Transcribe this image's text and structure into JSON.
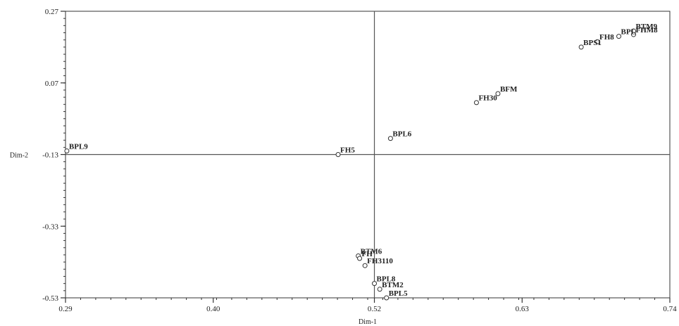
{
  "chart_data": {
    "type": "scatter",
    "title": "",
    "xlabel": "Dim-1",
    "ylabel": "Dim-2",
    "xlim": [
      0.29,
      0.74
    ],
    "ylim": [
      -0.53,
      0.27
    ],
    "xticks": [
      "0.29",
      "0.40",
      "0.52",
      "0.63",
      "0.74"
    ],
    "yticks": [
      "0.27",
      "0.07",
      "-0.13",
      "-0.33",
      "-0.53"
    ],
    "reference_lines": {
      "x": 0.52,
      "y": -0.13
    },
    "grid": false,
    "legend": "none",
    "points": [
      {
        "label": "BTM9",
        "x": 0.713,
        "y": 0.215
      },
      {
        "label": "FHM8",
        "x": 0.713,
        "y": 0.205
      },
      {
        "label": "BPL",
        "x": 0.702,
        "y": 0.2
      },
      {
        "label": "FH8",
        "x": 0.686,
        "y": 0.185
      },
      {
        "label": "BPS1",
        "x": 0.674,
        "y": 0.17
      },
      {
        "label": "BFM",
        "x": 0.612,
        "y": 0.04
      },
      {
        "label": "FH30",
        "x": 0.596,
        "y": 0.015
      },
      {
        "label": "BPL6",
        "x": 0.532,
        "y": -0.085
      },
      {
        "label": "BPL9",
        "x": 0.291,
        "y": -0.12
      },
      {
        "label": "FH5",
        "x": 0.493,
        "y": -0.13
      },
      {
        "label": "BTM6",
        "x": 0.508,
        "y": -0.413
      },
      {
        "label": "FH",
        "x": 0.509,
        "y": -0.42
      },
      {
        "label": "FH3110",
        "x": 0.513,
        "y": -0.44
      },
      {
        "label": "BPL8",
        "x": 0.52,
        "y": -0.49
      },
      {
        "label": "BTM2",
        "x": 0.524,
        "y": -0.506
      },
      {
        "label": "BPL5",
        "x": 0.529,
        "y": -0.53
      }
    ]
  }
}
